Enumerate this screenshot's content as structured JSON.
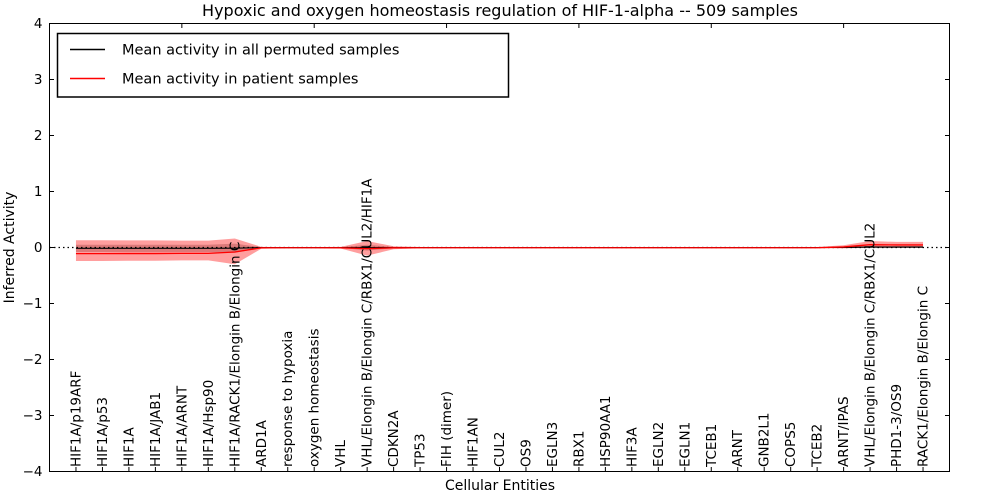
{
  "title": "Hypoxic and oxygen homeostasis regulation of HIF-1-alpha -- 509 samples",
  "axes": {
    "xlabel": "Cellular Entities",
    "ylabel": "Inferred Activity",
    "ylim": [
      -4,
      4
    ],
    "yticks": [
      {
        "v": 4,
        "label": "4"
      },
      {
        "v": 3,
        "label": "3"
      },
      {
        "v": 2,
        "label": "2"
      },
      {
        "v": 1,
        "label": "1"
      },
      {
        "v": 0,
        "label": "0"
      },
      {
        "v": -1,
        "label": "−1"
      },
      {
        "v": -2,
        "label": "−2"
      },
      {
        "v": -3,
        "label": "−3"
      },
      {
        "v": -4,
        "label": "−4"
      }
    ],
    "top_tick_positions": [
      5,
      10,
      15,
      20,
      25,
      30
    ]
  },
  "legend": {
    "entries": [
      {
        "label": "Mean activity in all permuted samples",
        "color": "#000000"
      },
      {
        "label": "Mean activity in patient samples",
        "color": "#ff0000"
      }
    ]
  },
  "colors": {
    "permuted_line": "#000000",
    "patient_line": "#ff0000",
    "permuted_band": "rgba(110,110,110,0.40)",
    "patient_band": "rgba(255,0,0,0.38)",
    "zero_line": "#000000",
    "spine": "#000000"
  },
  "chart_data": {
    "type": "line",
    "title": "Hypoxic and oxygen homeostasis regulation of HIF-1-alpha -- 509 samples",
    "xlabel": "Cellular Entities",
    "ylabel": "Inferred Activity",
    "ylim": [
      -4,
      4
    ],
    "grid": false,
    "legend_position": "upper left",
    "zero_reference_line": true,
    "categories": [
      "HIF1A/p19ARF",
      "HIF1A/p53",
      "HIF1A",
      "HIF1A/JAB1",
      "HIF1A/ARNT",
      "HIF1A/Hsp90",
      "HIF1A/RACK1/Elongin B/Elongin C",
      "ARD1A",
      "response to hypoxia",
      "oxygen homeostasis",
      "VHL",
      "VHL/Elongin B/Elongin C/RBX1/CUL2/HIF1A",
      "CDKN2A",
      "TP53",
      "FIH (dimer)",
      "HIF1AN",
      "CUL2",
      "OS9",
      "EGLN3",
      "RBX1",
      "HSP90AA1",
      "HIF3A",
      "EGLN2",
      "EGLN1",
      "TCEB1",
      "ARNT",
      "GNB2L1",
      "COPS5",
      "TCEB2",
      "ARNT/IPAS",
      "VHL/Elongin B/Elongin C/RBX1/CUL2",
      "PHD1-3/OS9",
      "RACK1/Elongin B/Elongin C"
    ],
    "series": [
      {
        "name": "Mean activity in all permuted samples",
        "color": "#000000",
        "values": [
          -0.015,
          -0.015,
          -0.015,
          -0.015,
          -0.015,
          -0.015,
          -0.012,
          -0.002,
          -0.001,
          -0.001,
          -0.001,
          -0.003,
          -0.001,
          0,
          0,
          0,
          0,
          0,
          0,
          0,
          0,
          0,
          0,
          0,
          0,
          0,
          0,
          0,
          0,
          0.002,
          0.008,
          0.008,
          0.008
        ],
        "band_upper": [
          0.05,
          0.05,
          0.05,
          0.05,
          0.05,
          0.05,
          0.07,
          0.006,
          0.004,
          0.004,
          0.004,
          0.05,
          0.01,
          0.004,
          0.004,
          0.004,
          0.004,
          0.004,
          0.004,
          0.004,
          0.004,
          0.004,
          0.004,
          0.004,
          0.004,
          0.004,
          0.004,
          0.004,
          0.004,
          0.01,
          0.03,
          0.026,
          0.026
        ],
        "band_lower": [
          -0.08,
          -0.08,
          -0.08,
          -0.08,
          -0.08,
          -0.08,
          -0.095,
          -0.008,
          -0.005,
          -0.005,
          -0.005,
          -0.055,
          -0.012,
          -0.005,
          -0.005,
          -0.005,
          -0.005,
          -0.005,
          -0.005,
          -0.005,
          -0.005,
          -0.005,
          -0.005,
          -0.005,
          -0.005,
          -0.005,
          -0.005,
          -0.005,
          -0.005,
          -0.008,
          -0.012,
          -0.01,
          -0.01
        ]
      },
      {
        "name": "Mean activity in patient samples",
        "color": "#ff0000",
        "values": [
          -0.11,
          -0.11,
          -0.108,
          -0.108,
          -0.105,
          -0.105,
          -0.08,
          -0.006,
          -0.004,
          -0.004,
          -0.006,
          -0.02,
          -0.006,
          -0.004,
          -0.004,
          -0.004,
          -0.004,
          -0.004,
          -0.004,
          -0.004,
          -0.004,
          -0.004,
          -0.004,
          -0.004,
          -0.004,
          -0.004,
          -0.004,
          -0.004,
          -0.004,
          0.01,
          0.05,
          0.046,
          0.046
        ],
        "band_upper": [
          0.13,
          0.13,
          0.127,
          0.127,
          0.122,
          0.122,
          0.16,
          0.012,
          0.006,
          0.006,
          0.012,
          0.115,
          0.022,
          0.008,
          0.008,
          0.008,
          0.008,
          0.008,
          0.008,
          0.008,
          0.008,
          0.008,
          0.008,
          0.008,
          0.008,
          0.008,
          0.008,
          0.008,
          0.008,
          0.04,
          0.115,
          0.1,
          0.1
        ],
        "band_lower": [
          -0.24,
          -0.24,
          -0.236,
          -0.236,
          -0.23,
          -0.23,
          -0.3,
          -0.022,
          -0.01,
          -0.01,
          -0.018,
          -0.145,
          -0.032,
          -0.014,
          -0.014,
          -0.014,
          -0.014,
          -0.014,
          -0.014,
          -0.014,
          -0.014,
          -0.014,
          -0.014,
          -0.014,
          -0.014,
          -0.014,
          -0.014,
          -0.014,
          -0.014,
          -0.015,
          -0.002,
          -0.004,
          -0.004
        ]
      }
    ]
  }
}
